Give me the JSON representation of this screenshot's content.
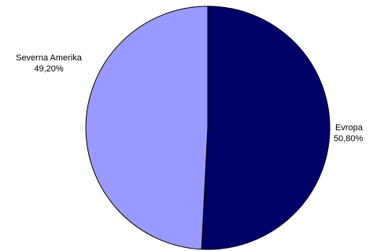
{
  "chart_data": {
    "type": "pie",
    "title": "",
    "legend": "none",
    "slices": [
      {
        "name": "Evropa",
        "value": 50.8,
        "value_label": "50,80%",
        "color": "#000066"
      },
      {
        "name": "Severna Amerika",
        "value": 49.2,
        "value_label": "49,20%",
        "color": "#9999ff"
      }
    ],
    "start_angle_deg": 0,
    "direction": "clockwise",
    "outline_color": "#000000"
  }
}
